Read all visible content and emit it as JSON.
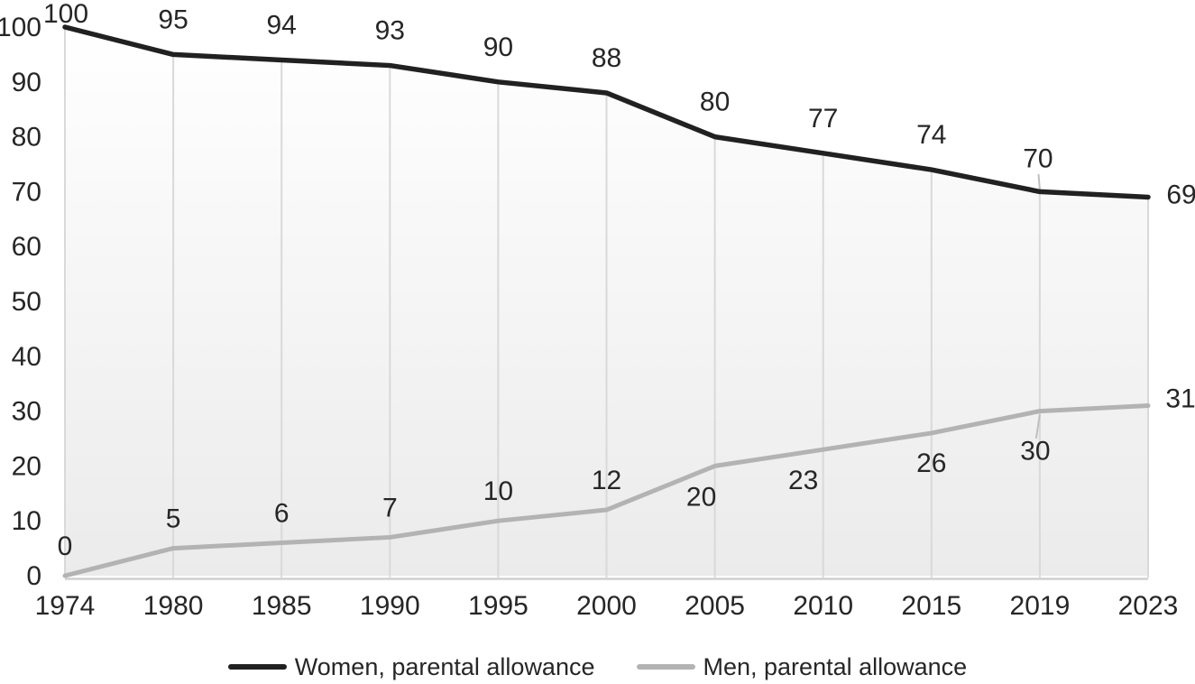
{
  "chart_data": {
    "type": "line",
    "title": "",
    "categories": [
      "1974",
      "1980",
      "1985",
      "1990",
      "1995",
      "2000",
      "2005",
      "2010",
      "2015",
      "2019",
      "2023"
    ],
    "series": [
      {
        "name": "Women, parental allowance",
        "values": [
          100,
          95,
          94,
          93,
          90,
          88,
          80,
          77,
          74,
          70,
          69
        ],
        "color": "#212121",
        "data_labels": [
          "100",
          "95",
          "94",
          "93",
          "90",
          "88",
          "80",
          "77",
          "74",
          "70",
          "69"
        ]
      },
      {
        "name": "Men, parental allowance",
        "values": [
          0,
          5,
          6,
          7,
          10,
          12,
          20,
          23,
          26,
          30,
          31
        ],
        "color": "#b3b3b3",
        "data_labels": [
          "0",
          "5",
          "6",
          "7",
          "10",
          "12",
          "20",
          "23",
          "26",
          "30",
          "31"
        ]
      }
    ],
    "xlabel": "",
    "ylabel": "",
    "y_axis": {
      "min": 0,
      "max": 100,
      "step": 10,
      "tick_labels": [
        "0",
        "10",
        "20",
        "30",
        "40",
        "50",
        "60",
        "70",
        "80",
        "90",
        "100"
      ]
    },
    "x_axis": {
      "tick_labels": [
        "1974",
        "1980",
        "1985",
        "1990",
        "1995",
        "2000",
        "2005",
        "2010",
        "2015",
        "2019",
        "2023"
      ]
    },
    "grid": "vertical drop lines from top series to x-axis",
    "legend_position": "bottom",
    "colors": {
      "drop_line": "#d9d9d9",
      "axis_line": "#cfcfcf",
      "leader_line": "#bfbfbf",
      "label_text": "#262626",
      "area_fill_top": "#ffffff",
      "area_fill_bottom": "#ebebeb"
    },
    "layout_hints": {
      "plot": {
        "x0": 72,
        "x1": 1273,
        "y_bottom": 638,
        "y_top": 30
      },
      "area_fill_under_first_series": true,
      "label_default_offset": {
        "women": [
          0,
          -39
        ],
        "men": [
          0,
          -33
        ]
      },
      "label_custom_offsets": {
        "women": {
          "0": [
            1,
            -15
          ],
          "9": [
            -2,
            -37
          ],
          "10": [
            37,
            -3
          ]
        },
        "men": {
          "6": [
            -15,
            34
          ],
          "7": [
            -22,
            34
          ],
          "8": [
            0,
            33
          ],
          "9": [
            -5,
            44
          ],
          "10": [
            36,
            -8
          ]
        }
      },
      "leader_lines": [
        {
          "x1": 1151.5,
          "y1": 193,
          "x2": 1152.9,
          "y2": 210
        },
        {
          "x1": 1152.9,
          "y1": 459,
          "x2": 1148.9,
          "y2": 486
        }
      ]
    }
  }
}
